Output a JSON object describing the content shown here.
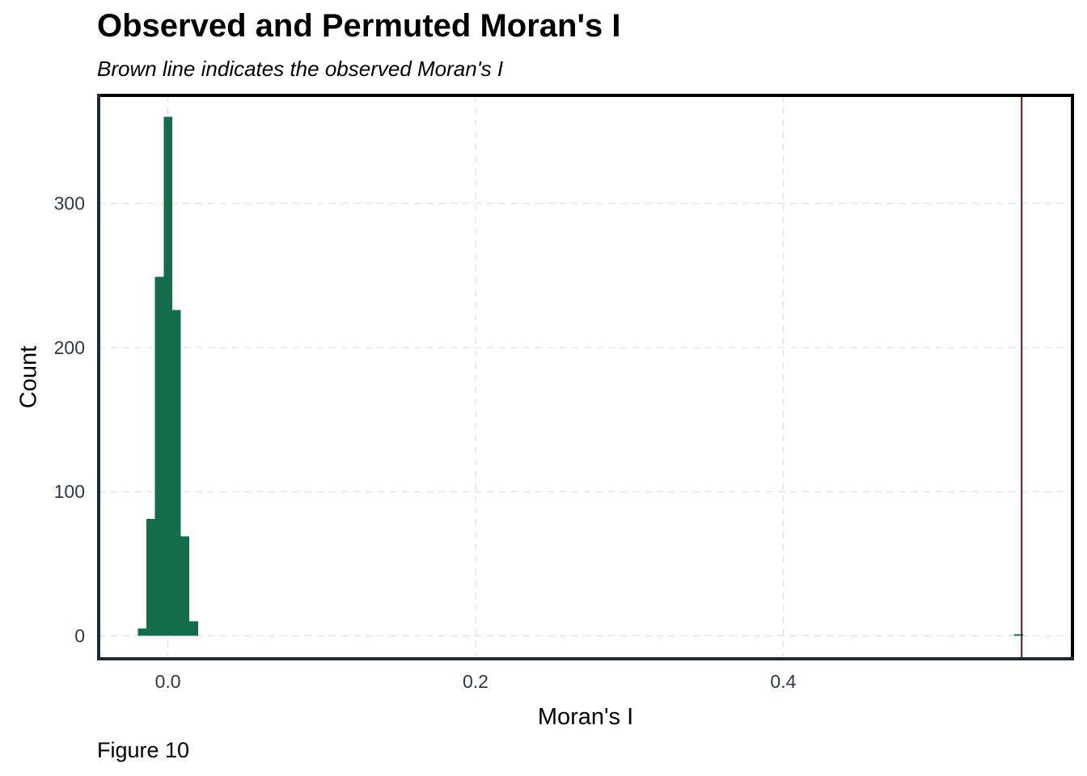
{
  "chart_data": {
    "type": "bar",
    "title": "Observed and Permuted Moran's I",
    "subtitle": "Brown line indicates the observed Moran's I",
    "caption": "Figure 10",
    "xlabel": "Moran's I",
    "ylabel": "Count",
    "xlim": [
      -0.045,
      0.588
    ],
    "ylim": [
      -16,
      375
    ],
    "x_ticks": [
      {
        "value": 0.0,
        "label": "0.0"
      },
      {
        "value": 0.2,
        "label": "0.2"
      },
      {
        "value": 0.4,
        "label": "0.4"
      }
    ],
    "y_ticks": [
      {
        "value": 0,
        "label": "0"
      },
      {
        "value": 100,
        "label": "100"
      },
      {
        "value": 200,
        "label": "200"
      },
      {
        "value": 300,
        "label": "300"
      }
    ],
    "grid": true,
    "grid_style": "dashed",
    "bin_width": 0.0056,
    "bins": [
      {
        "start": -0.0196,
        "end": -0.014,
        "count": 5
      },
      {
        "start": -0.014,
        "end": -0.0084,
        "count": 81
      },
      {
        "start": -0.0084,
        "end": -0.0028,
        "count": 249
      },
      {
        "start": -0.0028,
        "end": 0.0028,
        "count": 360
      },
      {
        "start": 0.0028,
        "end": 0.0084,
        "count": 226
      },
      {
        "start": 0.0084,
        "end": 0.014,
        "count": 69
      },
      {
        "start": 0.014,
        "end": 0.0196,
        "count": 10
      },
      {
        "start": 0.5502,
        "end": 0.5558,
        "count": 1
      }
    ],
    "observed_value": 0.555,
    "colors": {
      "bar": "#136d4b",
      "observed_line": "#5a1e0f",
      "grid": "#e0e0e0",
      "panel_border": "#000000",
      "axis_line": "#1c2a3a",
      "tick_text": "#2b3a4b"
    }
  }
}
